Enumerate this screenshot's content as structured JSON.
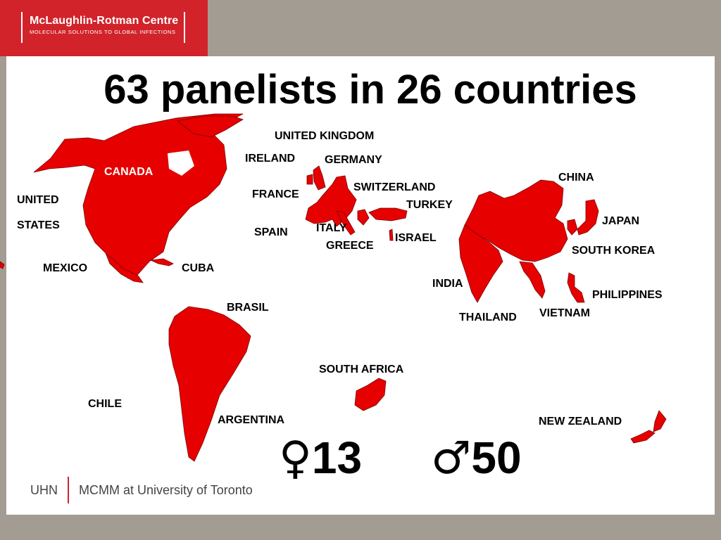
{
  "logo": {
    "title": "McLaughlin-Rotman Centre",
    "subtitle": "MOLECULAR SOLUTIONS TO GLOBAL INFECTIONS"
  },
  "title": "63 panelists in 26 countries",
  "countries": {
    "canada": "CANADA",
    "united": "UNITED",
    "states": "STATES",
    "mexico": "MEXICO",
    "cuba": "CUBA",
    "brasil": "BRASIL",
    "chile": "CHILE",
    "argentina": "ARGENTINA",
    "united_kingdom": "UNITED KINGDOM",
    "ireland": "IRELAND",
    "germany": "GERMANY",
    "france": "FRANCE",
    "switzerland": "SWITZERLAND",
    "turkey": "TURKEY",
    "spain": "SPAIN",
    "italy": "ITALY",
    "greece": "GREECE",
    "israel": "ISRAEL",
    "china": "CHINA",
    "japan": "JAPAN",
    "south_korea": "SOUTH KOREA",
    "india": "INDIA",
    "philippines": "PHILIPPINES",
    "vietnam": "VIETNAM",
    "thailand": "THAILAND",
    "south_africa": "SOUTH AFRICA",
    "new_zealand": "NEW ZEALAND"
  },
  "gender": {
    "female_symbol": "♀",
    "female_count": "13",
    "male_symbol": "♂",
    "male_count": "50"
  },
  "footer": {
    "left": "UHN",
    "right": "MCMM at University of Toronto"
  },
  "colors": {
    "brand_red": "#d2232a",
    "map_red": "#e60000",
    "frame": "#a39c92"
  }
}
